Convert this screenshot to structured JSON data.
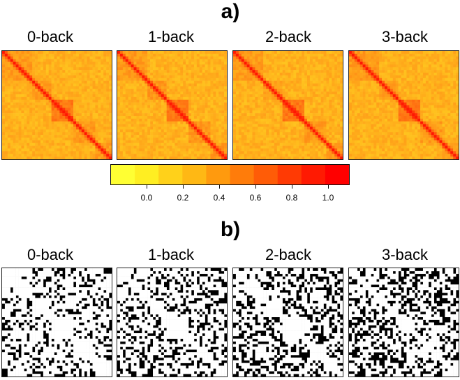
{
  "panels": {
    "a": {
      "title": "a)"
    },
    "b": {
      "title": "b)"
    }
  },
  "matrix_labels": [
    "0-back",
    "1-back",
    "2-back",
    "3-back"
  ],
  "colorbar": {
    "ticks": [
      "0.0",
      "0.2",
      "0.4",
      "0.6",
      "0.8",
      "1.0"
    ],
    "colors": [
      "#ffff33",
      "#ffee22",
      "#ffd11a",
      "#ffb814",
      "#ff9a0e",
      "#ff7c0a",
      "#ff5c07",
      "#ff3a04",
      "#ff1a02",
      "#ff0000"
    ]
  },
  "chart_data": [
    {
      "type": "heatmap",
      "panel": "a)",
      "matrices": [
        "0-back",
        "1-back",
        "2-back",
        "3-back"
      ],
      "colorscale": [
        "#ffff33",
        "#ff0000"
      ],
      "ticks": [
        0.0,
        0.2,
        0.4,
        0.6,
        0.8,
        1.0
      ]
    },
    {
      "type": "heatmap",
      "panel": "b)",
      "matrices": [
        "0-back",
        "1-back",
        "2-back",
        "3-back"
      ],
      "colorscale": [
        "#000000",
        "#ffffff"
      ]
    }
  ]
}
